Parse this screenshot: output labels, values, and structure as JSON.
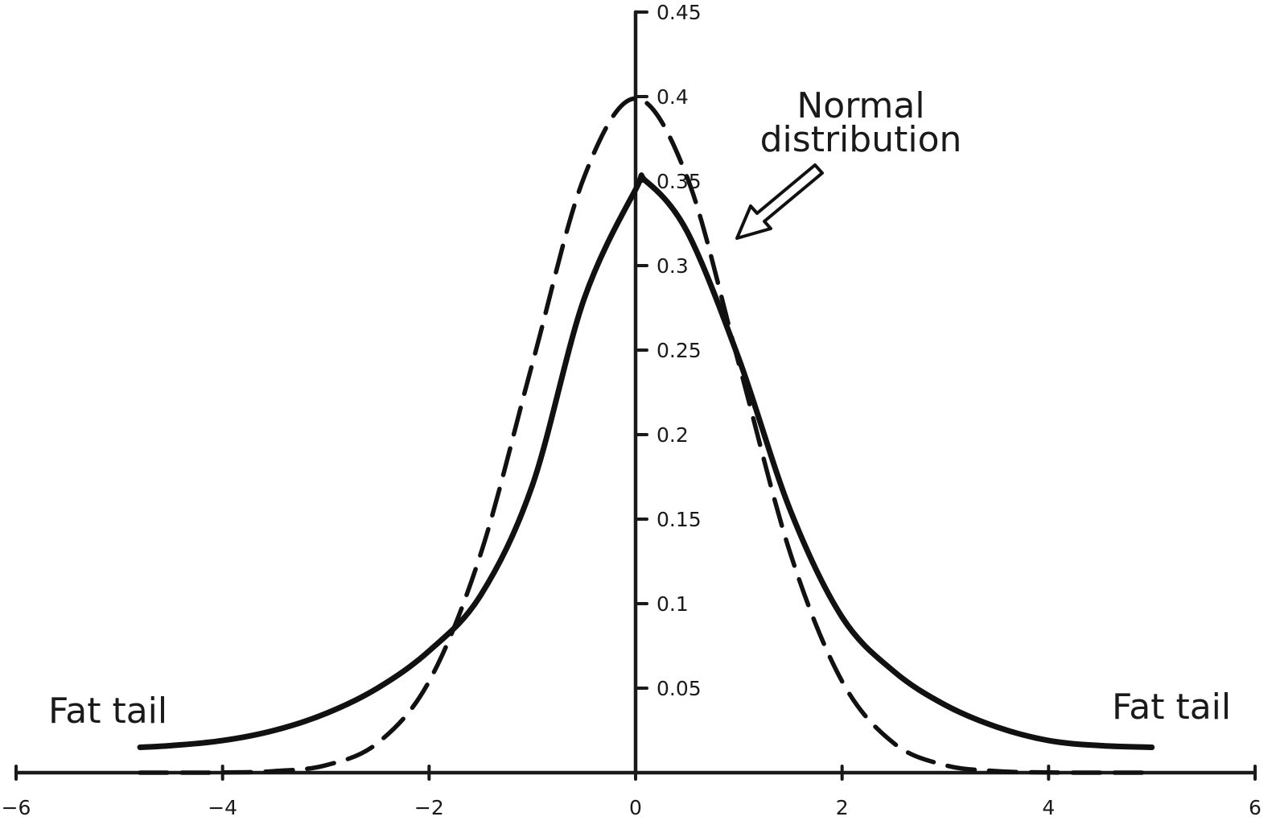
{
  "chart_data": {
    "type": "line",
    "xlim": [
      -6,
      6
    ],
    "ylim": [
      0,
      0.45
    ],
    "x_ticks": [
      -6,
      -4,
      -2,
      0,
      2,
      4,
      6
    ],
    "x_tick_labels": [
      "−6",
      "−4",
      "−2",
      "0",
      "2",
      "4",
      "6"
    ],
    "y_ticks": [
      0.05,
      0.1,
      0.15,
      0.2,
      0.25,
      0.3,
      0.35,
      0.4,
      0.45
    ],
    "y_tick_labels": [
      "0.05",
      "0.1",
      "0.15",
      "0.2",
      "0.25",
      "0.3",
      "0.35",
      "0.4",
      "0.45"
    ],
    "grid": false,
    "series": [
      {
        "style": "solid",
        "x": [
          -4.8,
          -4.5,
          -4.0,
          -3.5,
          -3.0,
          -2.5,
          -2.0,
          -1.5,
          -1.0,
          -0.5,
          0.0,
          0.1,
          0.5,
          1.0,
          1.5,
          2.0,
          2.5,
          3.0,
          3.5,
          4.0,
          4.5,
          5.0
        ],
        "y": [
          0.015,
          0.016,
          0.019,
          0.025,
          0.035,
          0.05,
          0.072,
          0.105,
          0.17,
          0.28,
          0.345,
          0.35,
          0.32,
          0.245,
          0.155,
          0.092,
          0.06,
          0.04,
          0.027,
          0.019,
          0.016,
          0.015
        ]
      },
      {
        "style": "dashed",
        "x": [
          -4.8,
          -4.5,
          -4.0,
          -3.5,
          -3.0,
          -2.5,
          -2.0,
          -1.5,
          -1.0,
          -0.5,
          0.0,
          0.5,
          1.0,
          1.5,
          2.0,
          2.5,
          3.0,
          3.5,
          4.0,
          4.5,
          5.0
        ],
        "y": [
          0.0,
          0.0,
          0.0001,
          0.0009,
          0.0044,
          0.0175,
          0.054,
          0.1295,
          0.242,
          0.3521,
          0.3989,
          0.3521,
          0.242,
          0.1295,
          0.054,
          0.0175,
          0.0044,
          0.0009,
          0.0001,
          0.0,
          0.0
        ]
      }
    ],
    "annotations": {
      "normal_label_line1": "Normal",
      "normal_label_line2": "distribution",
      "fat_tail_left": "Fat tail",
      "fat_tail_right": "Fat tail"
    }
  }
}
